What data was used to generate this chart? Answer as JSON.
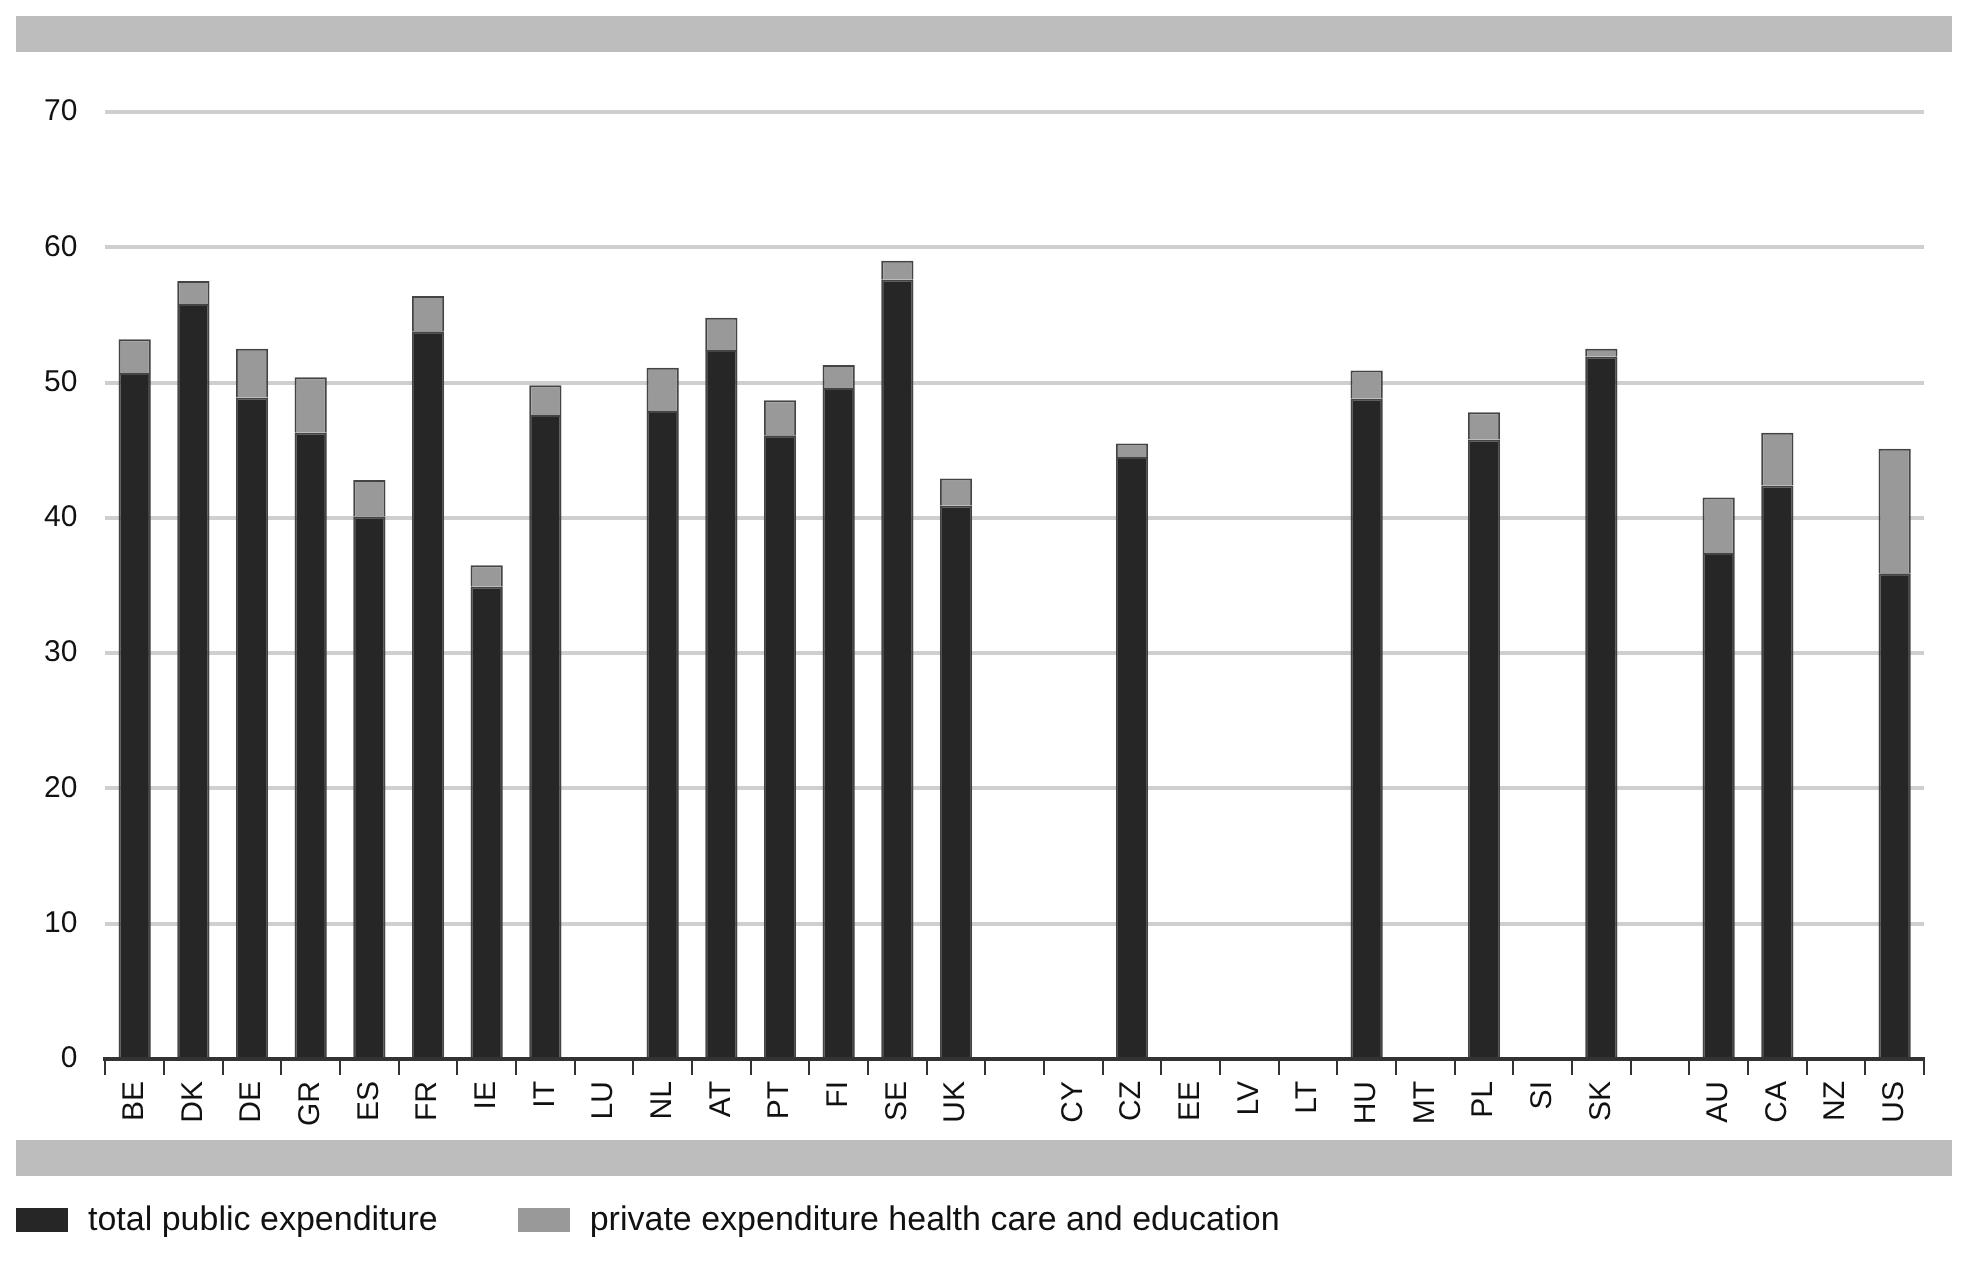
{
  "chart_data": {
    "type": "bar",
    "stacked": true,
    "categories": [
      "BE",
      "DK",
      "DE",
      "GR",
      "ES",
      "FR",
      "IE",
      "IT",
      "LU",
      "NL",
      "AT",
      "PT",
      "FI",
      "SE",
      "UK",
      null,
      "CY",
      "CZ",
      "EE",
      "LV",
      "LT",
      "HU",
      "MT",
      "PL",
      "SI",
      "SK",
      null,
      "AU",
      "CA",
      "NZ",
      "US"
    ],
    "series": [
      {
        "name": "total public expenditure",
        "color": "#262626",
        "values": [
          50.7,
          55.8,
          48.9,
          46.3,
          40.1,
          53.8,
          34.9,
          47.6,
          null,
          47.9,
          52.4,
          46.1,
          49.6,
          57.6,
          40.9,
          null,
          null,
          44.5,
          null,
          null,
          null,
          48.8,
          null,
          45.8,
          null,
          51.9,
          null,
          37.4,
          42.4,
          null,
          35.9
        ]
      },
      {
        "name": "private expenditure health care and education",
        "color": "#999999",
        "values": [
          2.5,
          1.7,
          3.6,
          4.1,
          2.7,
          2.6,
          1.6,
          2.2,
          null,
          3.2,
          2.4,
          2.6,
          1.7,
          1.4,
          2.0,
          null,
          null,
          1.0,
          null,
          null,
          null,
          2.1,
          null,
          2.0,
          null,
          0.6,
          null,
          4.1,
          3.9,
          null,
          9.2
        ]
      }
    ],
    "ylim": [
      0,
      70
    ],
    "yticks": [
      0,
      10,
      20,
      30,
      40,
      50,
      60,
      70
    ],
    "grid": "y",
    "legend": "bottom left"
  }
}
